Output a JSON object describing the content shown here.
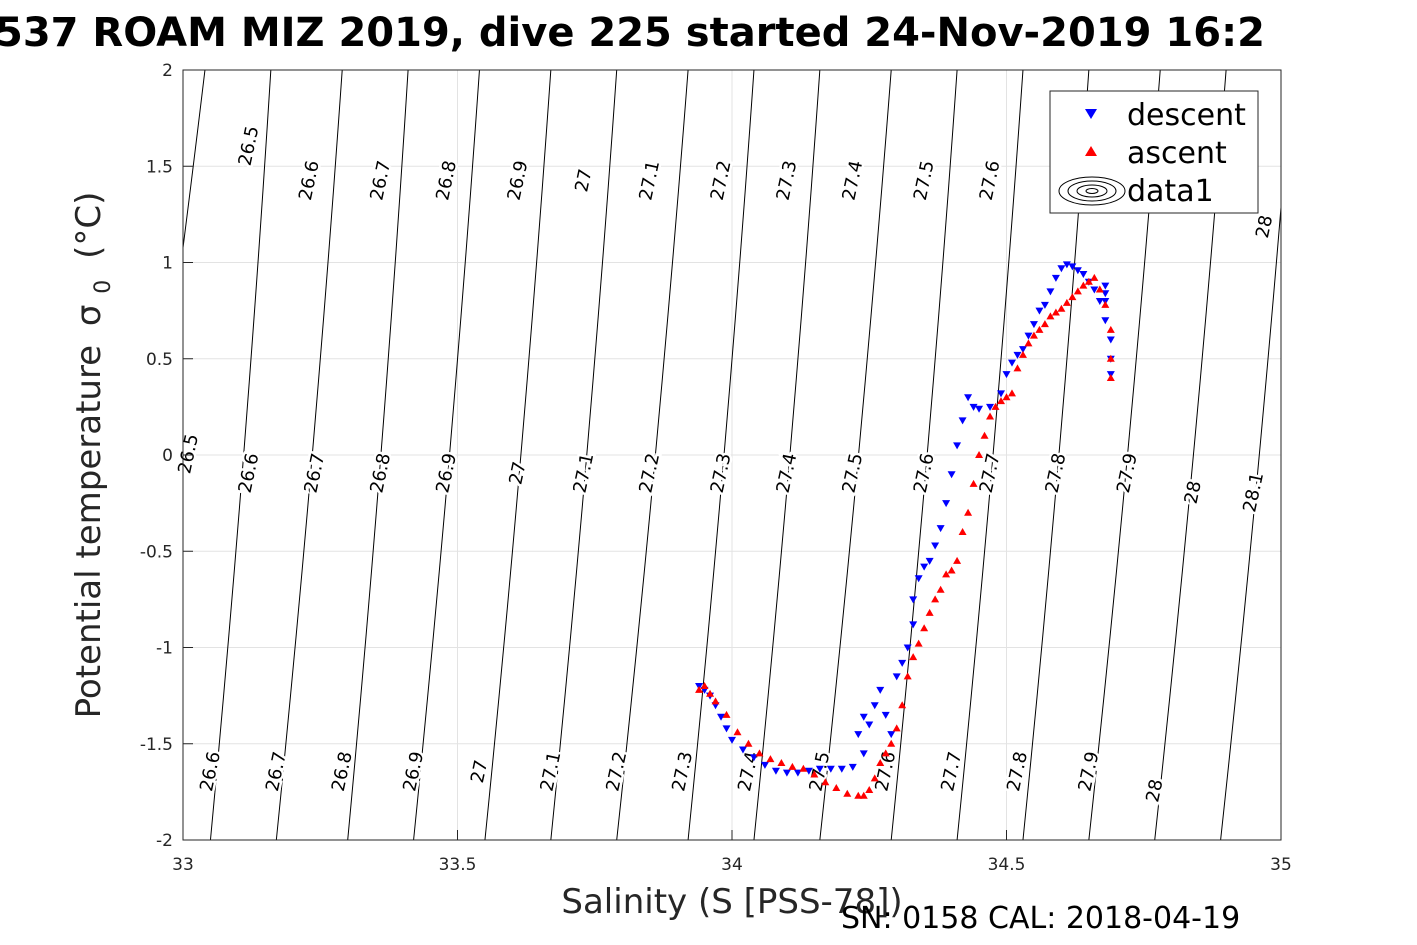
{
  "chart_data": {
    "type": "scatter",
    "title": "537 ROAM MIZ 2019, dive 225 started 24-Nov-2019 16:2",
    "xlabel": "Salinity (S [PSS-78])",
    "ylabel": "Potential temperature",
    "ylabel_sigma": "σ",
    "ylabel_sub": "0",
    "ylabel_unit": "(°C)",
    "footnote": "SN: 0158  CAL: 2018-04-19",
    "xlim": [
      33,
      35
    ],
    "ylim": [
      -2,
      2
    ],
    "xticks": [
      "33",
      "33.5",
      "34",
      "34.5",
      "35"
    ],
    "yticks": [
      "-2",
      "-1.5",
      "-1",
      "-0.5",
      "0",
      "0.5",
      "1",
      "1.5",
      "2"
    ],
    "grid": true,
    "legend_position": "top-right",
    "legend": [
      {
        "label": "descent",
        "marker": "triangle-down",
        "color": "#0000ff"
      },
      {
        "label": "ascent",
        "marker": "triangle-up",
        "color": "#ff0000"
      },
      {
        "label": "data1",
        "marker": "contour",
        "color": "#000000"
      }
    ],
    "isopycnals": [
      {
        "label": "26.5",
        "top": 33.04,
        "bottom": 32.85,
        "labels_at": [
          [
            33.13,
            1.6
          ],
          [
            33.02,
            0
          ]
        ]
      },
      {
        "label": "26.6",
        "top": 33.16,
        "bottom": 33.05,
        "labels_at": [
          [
            33.24,
            1.42
          ],
          [
            33.13,
            -0.1
          ],
          [
            33.06,
            -1.65
          ]
        ]
      },
      {
        "label": "26.7",
        "top": 33.29,
        "bottom": 33.17,
        "labels_at": [
          [
            33.37,
            1.42
          ],
          [
            33.25,
            -0.1
          ],
          [
            33.18,
            -1.65
          ]
        ]
      },
      {
        "label": "26.8",
        "top": 33.41,
        "bottom": 33.3,
        "labels_at": [
          [
            33.49,
            1.42
          ],
          [
            33.37,
            -0.1
          ],
          [
            33.3,
            -1.65
          ]
        ]
      },
      {
        "label": "26.9",
        "top": 33.54,
        "bottom": 33.42,
        "labels_at": [
          [
            33.62,
            1.42
          ],
          [
            33.49,
            -0.1
          ],
          [
            33.43,
            -1.65
          ]
        ]
      },
      {
        "label": "27",
        "top": 33.67,
        "bottom": 33.55,
        "labels_at": [
          [
            33.74,
            1.42
          ],
          [
            33.62,
            -0.1
          ],
          [
            33.55,
            -1.65
          ]
        ]
      },
      {
        "label": "27.1",
        "top": 33.79,
        "bottom": 33.67,
        "labels_at": [
          [
            33.86,
            1.42
          ],
          [
            33.74,
            -0.1
          ],
          [
            33.68,
            -1.65
          ]
        ]
      },
      {
        "label": "27.2",
        "top": 33.92,
        "bottom": 33.79,
        "labels_at": [
          [
            33.99,
            1.42
          ],
          [
            33.86,
            -0.1
          ],
          [
            33.8,
            -1.65
          ]
        ]
      },
      {
        "label": "27.3",
        "top": 34.04,
        "bottom": 33.92,
        "labels_at": [
          [
            34.11,
            1.42
          ],
          [
            33.99,
            -0.1
          ],
          [
            33.92,
            -1.65
          ]
        ]
      },
      {
        "label": "27.4",
        "top": 34.16,
        "bottom": 34.04,
        "labels_at": [
          [
            34.23,
            1.42
          ],
          [
            34.11,
            -0.1
          ],
          [
            34.04,
            -1.65
          ]
        ]
      },
      {
        "label": "27.5",
        "top": 34.29,
        "bottom": 34.16,
        "labels_at": [
          [
            34.36,
            1.42
          ],
          [
            34.23,
            -0.1
          ],
          [
            34.17,
            -1.65
          ]
        ]
      },
      {
        "label": "27.6",
        "top": 34.41,
        "bottom": 34.29,
        "labels_at": [
          [
            34.48,
            1.42
          ],
          [
            34.36,
            -0.1
          ],
          [
            34.29,
            -1.65
          ]
        ]
      },
      {
        "label": "27.7",
        "top": 34.53,
        "bottom": 34.41,
        "labels_at": [
          [
            34.48,
            -0.1
          ],
          [
            34.41,
            -1.65
          ]
        ]
      },
      {
        "label": "27.8",
        "top": 34.65,
        "bottom": 34.53,
        "labels_at": [
          [
            34.6,
            -0.1
          ],
          [
            34.53,
            -1.65
          ]
        ]
      },
      {
        "label": "27.9",
        "top": 34.78,
        "bottom": 34.65,
        "labels_at": [
          [
            34.73,
            -0.1
          ],
          [
            34.66,
            -1.65
          ]
        ]
      },
      {
        "label": "28",
        "top": 34.9,
        "bottom": 34.77,
        "labels_at": [
          [
            34.98,
            1.18
          ],
          [
            34.85,
            -0.2
          ],
          [
            34.78,
            -1.75
          ]
        ]
      },
      {
        "label": "28.1",
        "top": 35.02,
        "bottom": 34.89,
        "labels_at": [
          [
            34.96,
            -0.2
          ]
        ]
      }
    ],
    "series": [
      {
        "name": "descent",
        "marker": "triangle-down",
        "color": "#0000ff",
        "x": [
          33.94,
          33.95,
          33.96,
          33.97,
          33.98,
          33.99,
          34.0,
          34.02,
          34.04,
          34.06,
          34.08,
          34.1,
          34.12,
          34.14,
          34.16,
          34.18,
          34.2,
          34.22,
          34.23,
          34.24,
          34.24,
          34.25,
          34.26,
          34.27,
          34.28,
          34.29,
          34.3,
          34.31,
          34.32,
          34.33,
          34.33,
          34.34,
          34.35,
          34.36,
          34.37,
          34.38,
          34.39,
          34.4,
          34.41,
          34.42,
          34.43,
          34.44,
          34.45,
          34.47,
          34.49,
          34.5,
          34.51,
          34.52,
          34.53,
          34.54,
          34.55,
          34.56,
          34.57,
          34.58,
          34.59,
          34.6,
          34.61,
          34.62,
          34.63,
          34.64,
          34.65,
          34.66,
          34.67,
          34.68,
          34.69,
          34.69,
          34.69,
          34.68,
          34.68,
          34.68
        ],
        "y": [
          -1.2,
          -1.22,
          -1.25,
          -1.3,
          -1.36,
          -1.42,
          -1.48,
          -1.53,
          -1.57,
          -1.61,
          -1.64,
          -1.65,
          -1.65,
          -1.64,
          -1.63,
          -1.63,
          -1.63,
          -1.62,
          -1.45,
          -1.36,
          -1.55,
          -1.4,
          -1.3,
          -1.22,
          -1.35,
          -1.45,
          -1.15,
          -1.08,
          -1.0,
          -0.88,
          -0.75,
          -0.64,
          -0.58,
          -0.55,
          -0.47,
          -0.38,
          -0.25,
          -0.1,
          0.05,
          0.18,
          0.3,
          0.25,
          0.24,
          0.25,
          0.32,
          0.42,
          0.48,
          0.52,
          0.55,
          0.62,
          0.68,
          0.75,
          0.78,
          0.85,
          0.92,
          0.97,
          0.99,
          0.98,
          0.96,
          0.94,
          0.9,
          0.86,
          0.8,
          0.7,
          0.6,
          0.5,
          0.42,
          0.8,
          0.88,
          0.84
        ]
      },
      {
        "name": "ascent",
        "marker": "triangle-up",
        "color": "#ff0000",
        "x": [
          33.94,
          33.95,
          33.96,
          33.97,
          33.99,
          34.01,
          34.03,
          34.05,
          34.07,
          34.09,
          34.11,
          34.13,
          34.15,
          34.17,
          34.19,
          34.21,
          34.23,
          34.24,
          34.25,
          34.26,
          34.27,
          34.28,
          34.29,
          34.3,
          34.31,
          34.32,
          34.33,
          34.34,
          34.35,
          34.36,
          34.37,
          34.38,
          34.39,
          34.4,
          34.41,
          34.42,
          34.43,
          34.44,
          34.45,
          34.46,
          34.47,
          34.48,
          34.49,
          34.5,
          34.51,
          34.52,
          34.53,
          34.54,
          34.55,
          34.56,
          34.57,
          34.58,
          34.59,
          34.6,
          34.61,
          34.62,
          34.63,
          34.64,
          34.65,
          34.66,
          34.67,
          34.68,
          34.69,
          34.69,
          34.69
        ],
        "y": [
          -1.22,
          -1.2,
          -1.24,
          -1.28,
          -1.35,
          -1.44,
          -1.5,
          -1.55,
          -1.58,
          -1.6,
          -1.62,
          -1.63,
          -1.66,
          -1.7,
          -1.73,
          -1.76,
          -1.77,
          -1.77,
          -1.74,
          -1.68,
          -1.6,
          -1.55,
          -1.5,
          -1.42,
          -1.3,
          -1.15,
          -1.05,
          -0.98,
          -0.9,
          -0.82,
          -0.75,
          -0.7,
          -0.62,
          -0.6,
          -0.55,
          -0.4,
          -0.3,
          -0.15,
          0.0,
          0.1,
          0.2,
          0.25,
          0.28,
          0.3,
          0.32,
          0.45,
          0.52,
          0.58,
          0.62,
          0.65,
          0.68,
          0.72,
          0.74,
          0.76,
          0.79,
          0.82,
          0.85,
          0.88,
          0.9,
          0.92,
          0.86,
          0.78,
          0.65,
          0.5,
          0.4
        ]
      }
    ]
  }
}
